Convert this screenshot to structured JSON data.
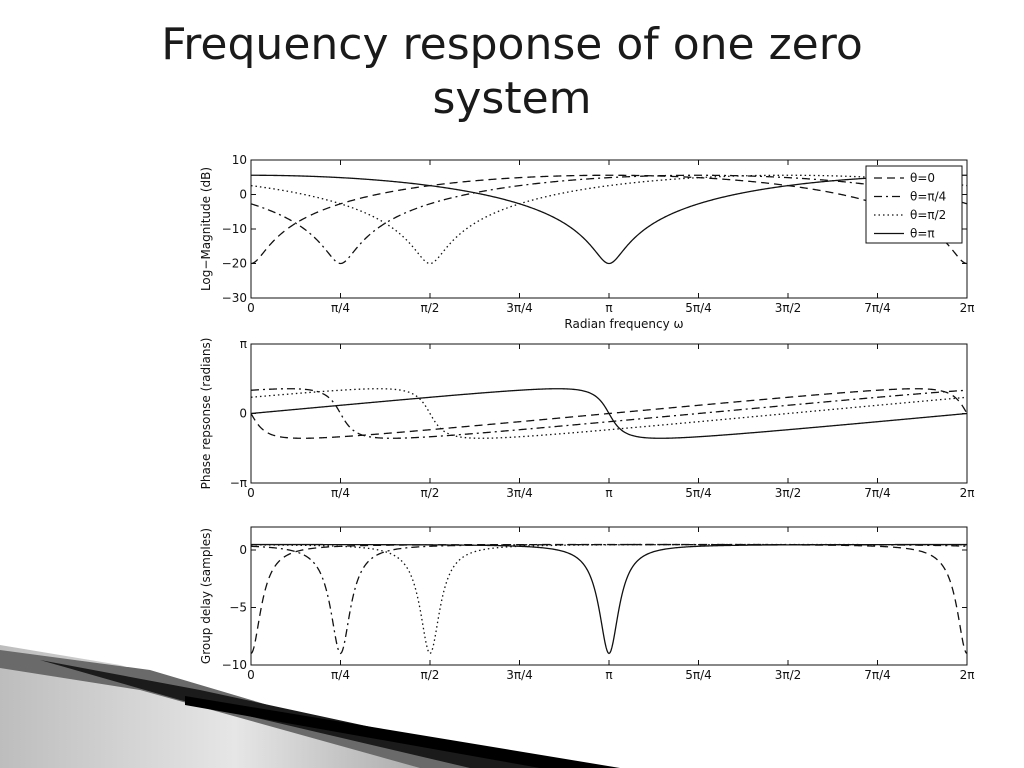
{
  "slide": {
    "title_lines": [
      "Frequency response of one zero",
      "system"
    ]
  },
  "legend": {
    "placement": "top-right",
    "entries": [
      {
        "label": "θ=0",
        "dash": "8 5",
        "theta": 0
      },
      {
        "label": "θ=π/4",
        "dash": "8 4 2 4",
        "theta": 0.785398
      },
      {
        "label": "θ=π/2",
        "dash": "1.5 3",
        "theta": 1.570796
      },
      {
        "label": "θ=π",
        "dash": "",
        "theta": 3.141593
      }
    ]
  },
  "chart_data": [
    {
      "type": "line",
      "quantity": "magnitude",
      "ylabel": "Log−Magnitude (dB)",
      "xlabel": "Radian frequency ω",
      "xlim": [
        0,
        6.283185
      ],
      "ylim": [
        -30,
        10
      ],
      "xticks": [
        {
          "value": 0,
          "label": "0"
        },
        {
          "value": 0.785398,
          "label": "π/4"
        },
        {
          "value": 1.570796,
          "label": "π/2"
        },
        {
          "value": 2.356194,
          "label": "3π/4"
        },
        {
          "value": 3.141593,
          "label": "π"
        },
        {
          "value": 3.926991,
          "label": "5π/4"
        },
        {
          "value": 4.712389,
          "label": "3π/2"
        },
        {
          "value": 5.497787,
          "label": "7π/4"
        },
        {
          "value": 6.283185,
          "label": "2π"
        }
      ],
      "yticks": [
        {
          "value": 10,
          "label": "10"
        },
        {
          "value": 0,
          "label": "0"
        },
        {
          "value": -10,
          "label": "−10"
        },
        {
          "value": -20,
          "label": "−20"
        },
        {
          "value": -30,
          "label": "−30"
        }
      ],
      "zero": {
        "r": 0.9,
        "floor_db": -20
      },
      "series": [
        {
          "name": "θ=0",
          "theta": 0
        },
        {
          "name": "θ=π/4",
          "theta": 0.785398
        },
        {
          "name": "θ=π/2",
          "theta": 1.570796
        },
        {
          "name": "θ=π",
          "theta": 3.141593
        }
      ]
    },
    {
      "type": "line",
      "quantity": "phase",
      "ylabel": "Phase repsonse (radians)",
      "xlabel": "",
      "xlim": [
        0,
        6.283185
      ],
      "ylim": [
        -3.141593,
        3.141593
      ],
      "xticks": [
        {
          "value": 0,
          "label": "0"
        },
        {
          "value": 0.785398,
          "label": "π/4"
        },
        {
          "value": 1.570796,
          "label": "π/2"
        },
        {
          "value": 2.356194,
          "label": "3π/4"
        },
        {
          "value": 3.141593,
          "label": "π"
        },
        {
          "value": 3.926991,
          "label": "5π/4"
        },
        {
          "value": 4.712389,
          "label": "3π/2"
        },
        {
          "value": 5.497787,
          "label": "7π/4"
        },
        {
          "value": 6.283185,
          "label": "2π"
        }
      ],
      "yticks": [
        {
          "value": 3.141593,
          "label": "π"
        },
        {
          "value": 0,
          "label": "0"
        },
        {
          "value": -3.141593,
          "label": "−π"
        }
      ],
      "zero": {
        "r": 0.9
      },
      "series": [
        {
          "name": "θ=0",
          "theta": 0
        },
        {
          "name": "θ=π/4",
          "theta": 0.785398
        },
        {
          "name": "θ=π/2",
          "theta": 1.570796
        },
        {
          "name": "θ=π",
          "theta": 3.141593
        }
      ]
    },
    {
      "type": "line",
      "quantity": "group_delay",
      "ylabel": "Group delay (samples)",
      "xlabel": "",
      "xlim": [
        0,
        6.283185
      ],
      "ylim": [
        -10,
        2
      ],
      "xticks": [
        {
          "value": 0,
          "label": "0"
        },
        {
          "value": 0.785398,
          "label": "π/4"
        },
        {
          "value": 1.570796,
          "label": "π/2"
        },
        {
          "value": 2.356194,
          "label": "3π/4"
        },
        {
          "value": 3.141593,
          "label": "π"
        },
        {
          "value": 3.926991,
          "label": "5π/4"
        },
        {
          "value": 4.712389,
          "label": "3π/2"
        },
        {
          "value": 5.497787,
          "label": "7π/4"
        },
        {
          "value": 6.283185,
          "label": "2π"
        }
      ],
      "yticks": [
        {
          "value": 0,
          "label": "0"
        },
        {
          "value": -5,
          "label": "−5"
        },
        {
          "value": -10,
          "label": "−10"
        }
      ],
      "zero": {
        "r": 0.9,
        "min_delay": -9
      },
      "series": [
        {
          "name": "θ=0",
          "theta": 0
        },
        {
          "name": "θ=π/4",
          "theta": 0.785398
        },
        {
          "name": "θ=π/2",
          "theta": 1.570796
        },
        {
          "name": "θ=π",
          "theta": 3.141593
        }
      ]
    }
  ]
}
